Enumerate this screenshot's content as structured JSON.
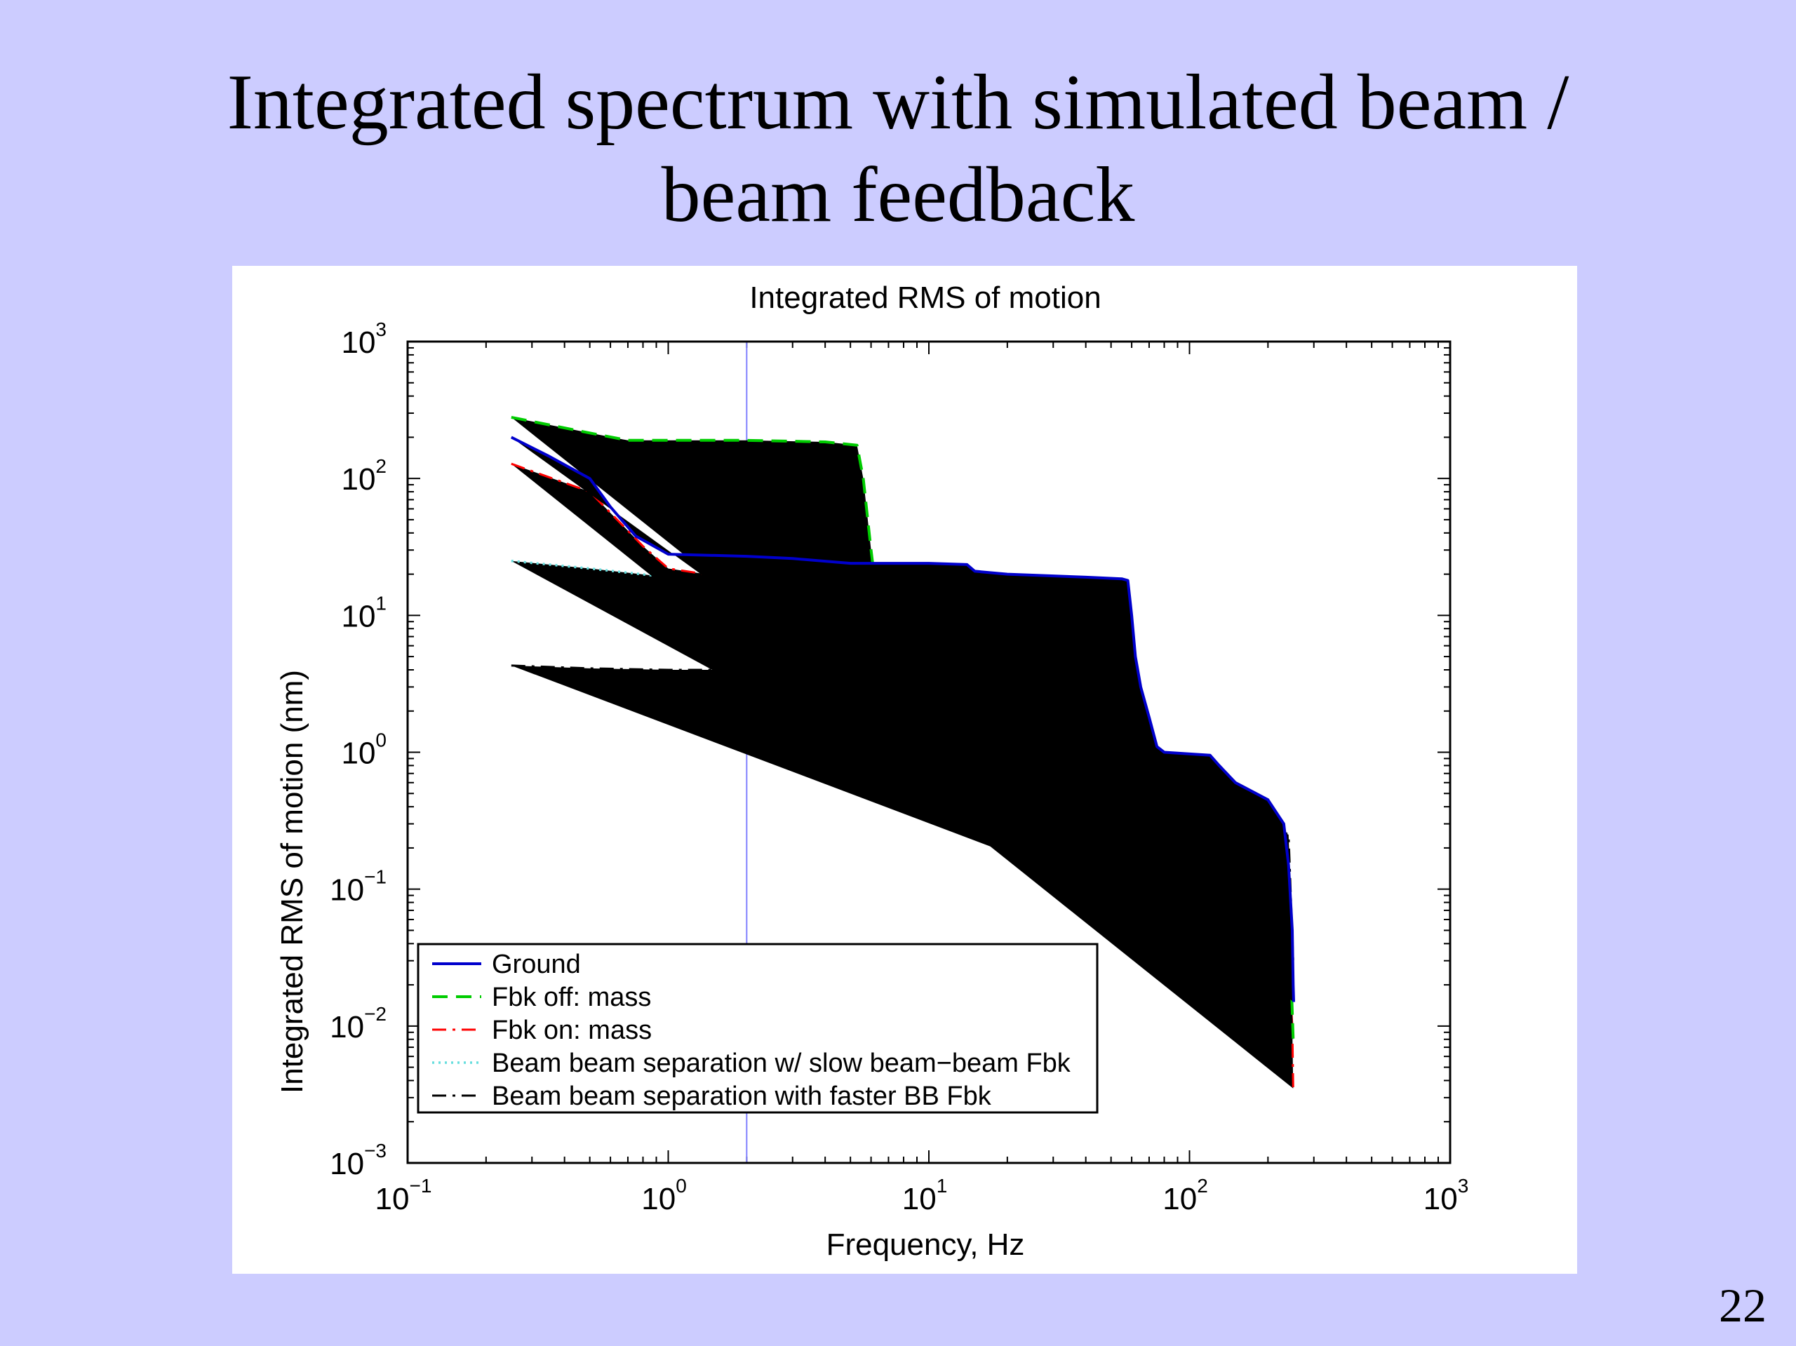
{
  "slide": {
    "title_line1": "Integrated spectrum with simulated beam /",
    "title_line2": "beam feedback",
    "page_number": "22"
  },
  "chart_data": {
    "type": "line",
    "title": "Integrated RMS of motion",
    "xlabel": "Frequency, Hz",
    "ylabel": "Integrated RMS of motion (nm)",
    "xscale": "log",
    "yscale": "log",
    "xlim": [
      0.1,
      1000
    ],
    "ylim": [
      0.001,
      1000
    ],
    "x_ticks": [
      {
        "base": "10",
        "exp": "−1",
        "value": 0.1
      },
      {
        "base": "10",
        "exp": "0",
        "value": 1
      },
      {
        "base": "10",
        "exp": "1",
        "value": 10
      },
      {
        "base": "10",
        "exp": "2",
        "value": 100
      },
      {
        "base": "10",
        "exp": "3",
        "value": 1000
      }
    ],
    "y_ticks": [
      {
        "base": "10",
        "exp": "−3",
        "value": 0.001
      },
      {
        "base": "10",
        "exp": "−2",
        "value": 0.01
      },
      {
        "base": "10",
        "exp": "−1",
        "value": 0.1
      },
      {
        "base": "10",
        "exp": "0",
        "value": 1
      },
      {
        "base": "10",
        "exp": "1",
        "value": 10
      },
      {
        "base": "10",
        "exp": "2",
        "value": 100
      },
      {
        "base": "10",
        "exp": "3",
        "value": 1000
      }
    ],
    "grid": false,
    "legend_position": "bottom-left",
    "vertical_marker": {
      "x": 2,
      "color": "#8080ff"
    },
    "series": [
      {
        "name": "Ground",
        "color": "#0000cc",
        "dash": "solid",
        "points": [
          [
            0.25,
            200
          ],
          [
            0.35,
            145
          ],
          [
            0.5,
            100
          ],
          [
            0.6,
            62
          ],
          [
            0.75,
            38
          ],
          [
            1.0,
            28
          ],
          [
            2.0,
            27
          ],
          [
            3.0,
            26
          ],
          [
            5.0,
            24
          ],
          [
            10,
            24
          ],
          [
            14,
            23.5
          ],
          [
            15,
            21
          ],
          [
            20,
            20
          ],
          [
            40,
            19
          ],
          [
            55,
            18.5
          ],
          [
            58,
            18
          ],
          [
            60,
            10
          ],
          [
            62,
            5
          ],
          [
            65,
            3
          ],
          [
            70,
            1.8
          ],
          [
            75,
            1.1
          ],
          [
            80,
            1.0
          ],
          [
            120,
            0.95
          ],
          [
            130,
            0.8
          ],
          [
            150,
            0.6
          ],
          [
            200,
            0.45
          ],
          [
            230,
            0.3
          ],
          [
            240,
            0.15
          ],
          [
            248,
            0.05
          ],
          [
            250,
            0.02
          ],
          [
            251,
            0.015
          ]
        ]
      },
      {
        "name": "Fbk off: mass",
        "color": "#00cc00",
        "dash": "dashed",
        "points": [
          [
            0.25,
            280
          ],
          [
            0.5,
            215
          ],
          [
            0.7,
            190
          ],
          [
            2.0,
            190
          ],
          [
            4.0,
            185
          ],
          [
            5.3,
            175
          ],
          [
            5.6,
            100
          ],
          [
            6.0,
            30
          ],
          [
            6.2,
            18
          ],
          [
            7.0,
            10
          ],
          [
            8.0,
            8
          ],
          [
            10,
            7.5
          ],
          [
            12,
            7
          ],
          [
            15,
            7
          ],
          [
            17,
            4
          ],
          [
            18,
            1.5
          ],
          [
            20,
            1.1
          ],
          [
            25,
            1.0
          ],
          [
            28,
            0.7
          ],
          [
            35,
            0.6
          ],
          [
            40,
            0.5
          ],
          [
            45,
            0.35
          ],
          [
            55,
            0.28
          ],
          [
            70,
            0.2
          ],
          [
            100,
            0.17
          ],
          [
            140,
            0.16
          ],
          [
            145,
            0.07
          ],
          [
            170,
            0.065
          ],
          [
            200,
            0.058
          ],
          [
            230,
            0.052
          ],
          [
            240,
            0.04
          ],
          [
            246,
            0.02
          ],
          [
            250,
            0.008
          ]
        ]
      },
      {
        "name": "Fbk on: mass",
        "color": "#ff0000",
        "dash": "dashdot",
        "points": [
          [
            0.25,
            128
          ],
          [
            0.5,
            80
          ],
          [
            0.8,
            32
          ],
          [
            1.0,
            22
          ],
          [
            2.0,
            18
          ],
          [
            2.5,
            16
          ],
          [
            3.0,
            12
          ],
          [
            4.0,
            8
          ],
          [
            5.0,
            5
          ],
          [
            6.0,
            4.2
          ],
          [
            8.0,
            3.2
          ],
          [
            10,
            3.0
          ],
          [
            12,
            2.5
          ],
          [
            14,
            2.2
          ],
          [
            15,
            1.0
          ],
          [
            16,
            0.7
          ],
          [
            18,
            0.55
          ],
          [
            22,
            0.5
          ],
          [
            25,
            0.45
          ],
          [
            28,
            0.3
          ],
          [
            40,
            0.24
          ],
          [
            60,
            0.22
          ],
          [
            70,
            0.19
          ],
          [
            100,
            0.17
          ],
          [
            125,
            0.16
          ],
          [
            130,
            0.07
          ],
          [
            160,
            0.06
          ],
          [
            200,
            0.053
          ],
          [
            230,
            0.047
          ],
          [
            240,
            0.03
          ],
          [
            248,
            0.01
          ],
          [
            250,
            0.0035
          ]
        ]
      },
      {
        "name": "Beam beam separation w/ slow beam−beam Fbk",
        "color": "#66dddd",
        "dash": "dotted",
        "points": [
          [
            0.25,
            25
          ],
          [
            0.5,
            22
          ],
          [
            1.0,
            19
          ],
          [
            2.0,
            18.5
          ],
          [
            3.0,
            17
          ],
          [
            4.0,
            12
          ],
          [
            5.0,
            7
          ],
          [
            6.0,
            5.5
          ],
          [
            8.0,
            4.5
          ],
          [
            10,
            4.0
          ],
          [
            13,
            3.5
          ],
          [
            15,
            2.8
          ],
          [
            16,
            1.2
          ],
          [
            17,
            0.75
          ],
          [
            20,
            0.6
          ],
          [
            25,
            0.52
          ],
          [
            30,
            0.45
          ],
          [
            40,
            0.4
          ],
          [
            50,
            0.35
          ],
          [
            70,
            0.3
          ],
          [
            100,
            0.25
          ],
          [
            125,
            0.24
          ],
          [
            130,
            0.12
          ],
          [
            160,
            0.1
          ],
          [
            200,
            0.08
          ],
          [
            230,
            0.07
          ],
          [
            240,
            0.05
          ],
          [
            250,
            0.02
          ]
        ]
      },
      {
        "name": "Beam beam separation with faster BB Fbk",
        "color": "#000000",
        "dash": "dashdot",
        "points": [
          [
            0.25,
            4.3
          ],
          [
            0.5,
            4.1
          ],
          [
            1.0,
            4.0
          ],
          [
            2.0,
            4.0
          ],
          [
            4.0,
            3.7
          ],
          [
            6.0,
            3.3
          ],
          [
            8.0,
            3.1
          ],
          [
            10,
            3.0
          ],
          [
            12,
            2.4
          ],
          [
            14,
            2.0
          ],
          [
            17,
            1.6
          ],
          [
            22,
            1.4
          ],
          [
            30,
            1.3
          ],
          [
            50,
            1.2
          ],
          [
            60,
            1.15
          ],
          [
            80,
            1.0
          ],
          [
            120,
            0.95
          ],
          [
            125,
            0.6
          ],
          [
            130,
            0.4
          ],
          [
            160,
            0.35
          ],
          [
            200,
            0.3
          ],
          [
            240,
            0.25
          ],
          [
            250,
            0.03
          ]
        ]
      }
    ]
  }
}
